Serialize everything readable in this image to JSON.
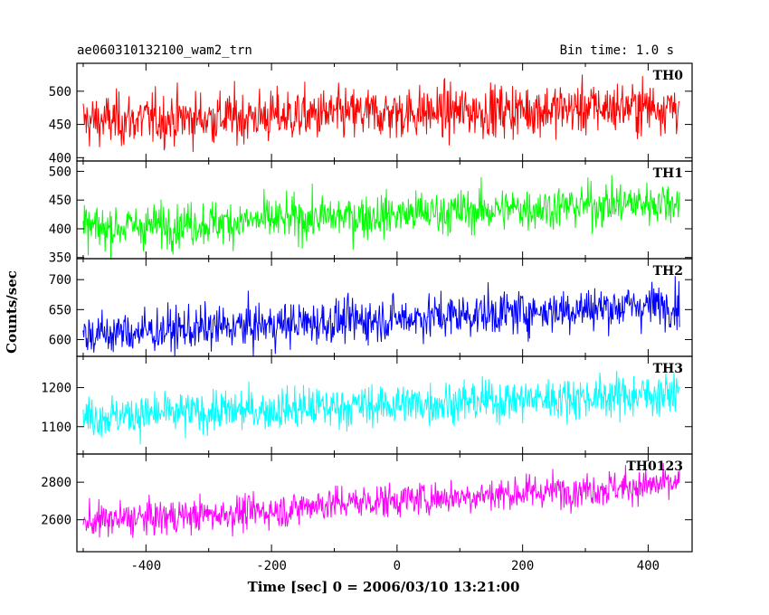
{
  "chart_data": {
    "type": "line",
    "title": "ae060310132100_wam2_trn",
    "subtitle": "Bin time: 1.0 s",
    "xlabel": "Time [sec] 0 = 2006/03/10 13:21:00",
    "ylabel": "Counts/sec",
    "xlim": [
      -510,
      470
    ],
    "xticks": [
      -400,
      -200,
      0,
      200,
      400
    ],
    "x_range": [
      -500,
      450
    ],
    "bin_time": 1.0,
    "grid": false,
    "panels": [
      {
        "name": "TH0",
        "color": "#ff0000",
        "ylim": [
          395,
          542
        ],
        "yticks": [
          400,
          450,
          500
        ],
        "start": 455,
        "end": 478,
        "noise": 28,
        "step": null
      },
      {
        "name": "TH1",
        "color": "#00ff00",
        "ylim": [
          348,
          518
        ],
        "yticks": [
          350,
          400,
          450,
          500
        ],
        "start": 400,
        "end": 448,
        "noise": 27,
        "step": null
      },
      {
        "name": "TH2",
        "color": "#0000ff",
        "ylim": [
          572,
          735
        ],
        "yticks": [
          600,
          650,
          700
        ],
        "start": 608,
        "end": 660,
        "noise": 26,
        "step": null
      },
      {
        "name": "TH3",
        "color": "#00ffff",
        "ylim": [
          1030,
          1280
        ],
        "yticks": [
          1100,
          1200
        ],
        "start": 1125,
        "end": 1185,
        "noise": 38,
        "step": null
      },
      {
        "name": "TH0123",
        "color": "#ff00ff",
        "ylim": [
          2430,
          2950
        ],
        "yticks": [
          2600,
          2800
        ],
        "start": 2590,
        "end": 2770,
        "noise": 65,
        "step": {
          "at": -155,
          "delta": 60
        }
      }
    ]
  }
}
